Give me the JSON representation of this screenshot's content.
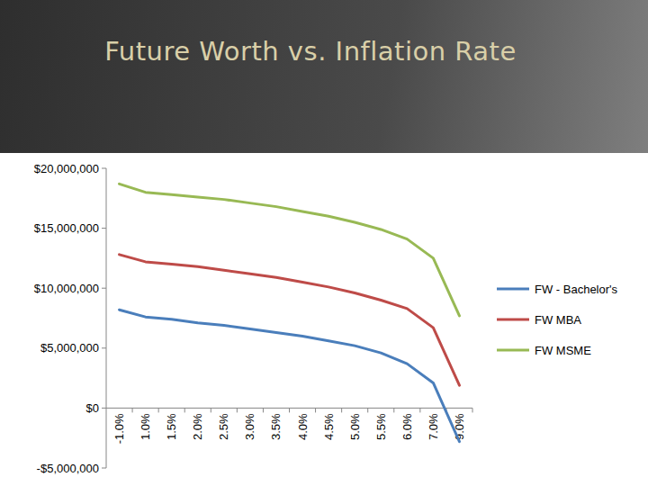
{
  "chart_data": {
    "type": "line",
    "title": "Future Worth vs. Inflation Rate",
    "categories": [
      "-1.0%",
      "1.0%",
      "1.5%",
      "2.0%",
      "2.5%",
      "3.0%",
      "3.5%",
      "4.0%",
      "4.5%",
      "5.0%",
      "5.5%",
      "6.0%",
      "7.0%",
      "9.0%"
    ],
    "series": [
      {
        "name": "FW - Bachelor's",
        "color": "#4a7ebb",
        "values": [
          8200000,
          7600000,
          7400000,
          7100000,
          6900000,
          6600000,
          6300000,
          6000000,
          5600000,
          5200000,
          4600000,
          3700000,
          2100000,
          -2800000
        ]
      },
      {
        "name": "FW MBA",
        "color": "#be4b48",
        "values": [
          12800000,
          12200000,
          12000000,
          11800000,
          11500000,
          11200000,
          10900000,
          10500000,
          10100000,
          9600000,
          9000000,
          8300000,
          6700000,
          1900000
        ]
      },
      {
        "name": "FW MSME",
        "color": "#98b954",
        "values": [
          18700000,
          18000000,
          17800000,
          17600000,
          17400000,
          17100000,
          16800000,
          16400000,
          16000000,
          15500000,
          14900000,
          14100000,
          12500000,
          7700000
        ]
      }
    ],
    "ylim": [
      -5000000,
      20000000
    ],
    "yticks": [
      {
        "value": -5000000,
        "label": "-$5,000,000"
      },
      {
        "value": 0,
        "label": "$0"
      },
      {
        "value": 5000000,
        "label": "$5,000,000"
      },
      {
        "value": 10000000,
        "label": "$10,000,000"
      },
      {
        "value": 15000000,
        "label": "$15,000,000"
      },
      {
        "value": 20000000,
        "label": "$20,000,000"
      }
    ],
    "grid": false,
    "legend": "right"
  }
}
